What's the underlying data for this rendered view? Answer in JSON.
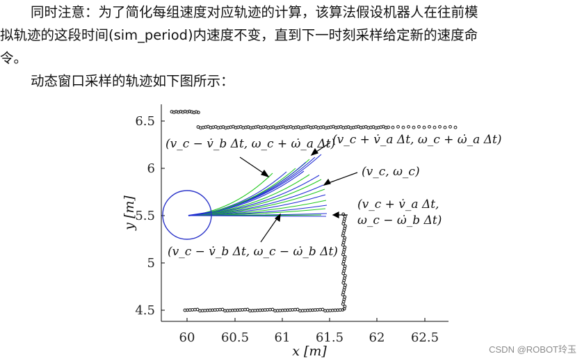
{
  "article": {
    "paragraph1_line1": "同时注意：为了简化每组速度对应轨迹的计算，该算法假设机器人在往前模",
    "paragraph1_line2": "拟轨迹的这段时间(sim_period)内速度不变，直到下一时刻采样给定新的速度命",
    "paragraph1_line3": "令。",
    "paragraph2": "动态窗口采样的轨迹如下图所示："
  },
  "figure": {
    "xlabel": "x [m]",
    "ylabel": "y [m]",
    "x_ticks": [
      "60",
      "60.5",
      "61",
      "61.5",
      "62",
      "62.5"
    ],
    "y_ticks": [
      "4.5",
      "5",
      "5.5",
      "6",
      "6.5"
    ],
    "annotations": {
      "upper_left": "(v_c − v̇_b Δt, ω_c + ω̇_a Δt)",
      "upper_right": "(v_c + v̇_a Δt, ω_c + ω̇_a Δt)",
      "center": "(v_c, ω_c)",
      "right_line1": "(v_c + v̇_a Δt,",
      "right_line2": "ω_c − ω̇_b Δt)",
      "lower_left": "(v_c − v̇_b Δt, ω_c − ω̇_b Δt)"
    },
    "colors": {
      "blue_traj": "#1f2bd4",
      "green_traj": "#22c81e",
      "robot": "#2b34c9",
      "points": "#222222"
    }
  },
  "watermark": "CSDN @ROBOT玲玉"
}
